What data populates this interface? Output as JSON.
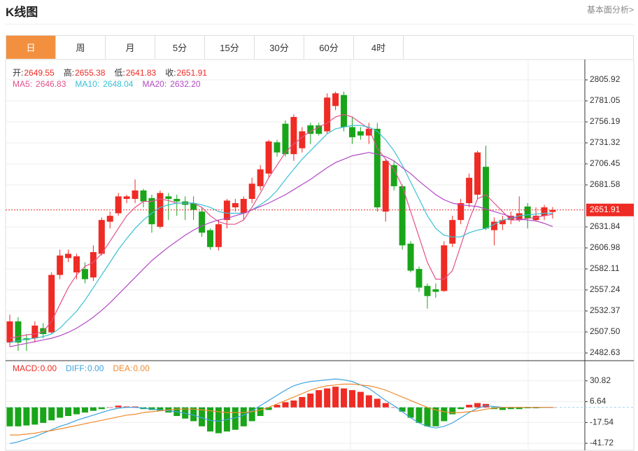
{
  "header": {
    "title": "K线图",
    "link": "基本面分析>"
  },
  "tabs": [
    "日",
    "周",
    "月",
    "5分",
    "15分",
    "30分",
    "60分",
    "4时"
  ],
  "chart_data": [
    {
      "type": "candlestick",
      "open": [
        2495,
        2520,
        2500,
        2500,
        2512,
        2507,
        2575,
        2595,
        2578,
        2582,
        2572,
        2600,
        2638,
        2648,
        2665,
        2665,
        2675,
        2666,
        2632,
        2668,
        2665,
        2662,
        2660,
        2650,
        2628,
        2608,
        2640,
        2655,
        2648,
        2665,
        2680,
        2695,
        2732,
        2754,
        2718,
        2725,
        2752,
        2752,
        2745,
        2775,
        2788,
        2750,
        2745,
        2740,
        2748,
        2650,
        2705,
        2680,
        2612,
        2582,
        2562,
        2558,
        2556,
        2612,
        2640,
        2660,
        2670,
        2703,
        2628,
        2635,
        2640,
        2640,
        2656,
        2640,
        2645,
        2649.55
      ],
      "high": [
        2528,
        2525,
        2505,
        2520,
        2518,
        2578,
        2605,
        2605,
        2600,
        2590,
        2610,
        2643,
        2650,
        2672,
        2670,
        2688,
        2677,
        2670,
        2675,
        2672,
        2670,
        2668,
        2668,
        2655,
        2630,
        2640,
        2665,
        2665,
        2668,
        2690,
        2705,
        2735,
        2735,
        2758,
        2765,
        2750,
        2755,
        2755,
        2790,
        2792,
        2792,
        2762,
        2750,
        2755,
        2755,
        2712,
        2710,
        2682,
        2615,
        2585,
        2565,
        2565,
        2615,
        2645,
        2665,
        2695,
        2722,
        2728,
        2643,
        2645,
        2650,
        2668,
        2660,
        2655,
        2658,
        2655.38
      ],
      "low": [
        2490,
        2485,
        2485,
        2495,
        2500,
        2505,
        2570,
        2590,
        2570,
        2565,
        2568,
        2598,
        2630,
        2645,
        2660,
        2660,
        2655,
        2625,
        2630,
        2640,
        2645,
        2640,
        2640,
        2620,
        2605,
        2604,
        2630,
        2650,
        2640,
        2660,
        2675,
        2690,
        2715,
        2715,
        2710,
        2720,
        2730,
        2740,
        2742,
        2770,
        2745,
        2730,
        2735,
        2730,
        2650,
        2638,
        2675,
        2605,
        2578,
        2555,
        2535,
        2548,
        2555,
        2608,
        2635,
        2655,
        2665,
        2628,
        2610,
        2628,
        2635,
        2638,
        2630,
        2638,
        2640,
        2641.83
      ],
      "close": [
        2520,
        2495,
        2498,
        2515,
        2505,
        2575,
        2598,
        2600,
        2597,
        2570,
        2602,
        2640,
        2645,
        2668,
        2668,
        2675,
        2662,
        2635,
        2672,
        2665,
        2662,
        2658,
        2652,
        2625,
        2608,
        2635,
        2663,
        2660,
        2665,
        2683,
        2700,
        2733,
        2720,
        2718,
        2762,
        2745,
        2742,
        2742,
        2785,
        2790,
        2750,
        2738,
        2740,
        2748,
        2655,
        2710,
        2680,
        2610,
        2580,
        2560,
        2550,
        2555,
        2610,
        2640,
        2660,
        2690,
        2720,
        2630,
        2638,
        2640,
        2645,
        2648,
        2642,
        2645,
        2655,
        2651.91
      ],
      "up_color": "#ee2b24",
      "down_color": "#19a519",
      "ohlc_labels": [
        "开:",
        "高:",
        "低:",
        "收:"
      ],
      "ylim": [
        2473.5,
        2830
      ],
      "yticks": [
        2482.63,
        {
          "value": 2507.5,
          "label": "2507.50"
        },
        2532.37,
        2557.24,
        2582.11,
        2606.98,
        2631.84,
        2681.58,
        2706.45,
        2731.32,
        2756.19,
        2781.05,
        2805.92
      ],
      "grid": true,
      "series": [
        {
          "name": "MA5:",
          "color": "#e2508a",
          "values": [
            2500,
            2502,
            2504,
            2505,
            2508,
            2520,
            2540,
            2560,
            2575,
            2585,
            2590,
            2600,
            2615,
            2630,
            2645,
            2655,
            2662,
            2662,
            2665,
            2663,
            2660,
            2660,
            2660,
            2655,
            2645,
            2638,
            2635,
            2635,
            2640,
            2655,
            2672,
            2690,
            2705,
            2720,
            2730,
            2738,
            2745,
            2750,
            2755,
            2762,
            2765,
            2762,
            2755,
            2748,
            2725,
            2712,
            2700,
            2680,
            2650,
            2620,
            2590,
            2570,
            2570,
            2580,
            2610,
            2640,
            2665,
            2670,
            2660,
            2650,
            2640,
            2640,
            2642,
            2643,
            2645,
            2646.83
          ]
        },
        {
          "name": "MA10:",
          "color": "#38c0d6",
          "values": [
            2495,
            2497,
            2499,
            2500,
            2502,
            2505,
            2512,
            2522,
            2532,
            2545,
            2560,
            2575,
            2590,
            2605,
            2618,
            2630,
            2640,
            2648,
            2655,
            2658,
            2660,
            2660,
            2660,
            2658,
            2655,
            2650,
            2648,
            2648,
            2648,
            2652,
            2658,
            2665,
            2675,
            2688,
            2700,
            2712,
            2722,
            2732,
            2742,
            2748,
            2750,
            2752,
            2752,
            2750,
            2745,
            2735,
            2722,
            2705,
            2685,
            2665,
            2645,
            2630,
            2622,
            2620,
            2620,
            2625,
            2628,
            2630,
            2635,
            2640,
            2642,
            2645,
            2646,
            2647,
            2648,
            2648.04
          ]
        },
        {
          "name": "MA20:",
          "color": "#b348c6",
          "current_label": "2632.20",
          "values": [
            2490,
            2492,
            2494,
            2496,
            2498,
            2500,
            2503,
            2507,
            2512,
            2518,
            2525,
            2533,
            2542,
            2552,
            2562,
            2572,
            2582,
            2592,
            2600,
            2608,
            2615,
            2622,
            2628,
            2633,
            2637,
            2640,
            2642,
            2645,
            2648,
            2652,
            2656,
            2660,
            2665,
            2670,
            2676,
            2682,
            2688,
            2695,
            2702,
            2708,
            2712,
            2716,
            2718,
            2720,
            2718,
            2715,
            2710,
            2702,
            2695,
            2686,
            2678,
            2670,
            2664,
            2660,
            2658,
            2657,
            2656,
            2653,
            2650,
            2647,
            2644,
            2641,
            2640,
            2639,
            2636,
            2632.2
          ]
        }
      ]
    },
    {
      "type": "macd",
      "name": "MACD:",
      "current_label": "0.00",
      "up_color": "#ee2b24",
      "down_color": "#19a519",
      "values": [
        -22,
        -22,
        -21,
        -20,
        -18,
        -15,
        -12,
        -10,
        -8,
        -6,
        -4,
        -2,
        0,
        2,
        1,
        1,
        -2,
        -3,
        -4,
        -6,
        -10,
        -13,
        -16,
        -22,
        -28,
        -30,
        -28,
        -26,
        -22,
        -16,
        -10,
        -3,
        3,
        6,
        8,
        12,
        16,
        20,
        22,
        24,
        22,
        20,
        18,
        14,
        10,
        5,
        0,
        -5,
        -12,
        -18,
        -22,
        -22,
        -16,
        -8,
        -2,
        3,
        5,
        4,
        -2,
        -3,
        -2,
        -2,
        -1,
        -1,
        0,
        0
      ],
      "ylim": [
        -49.8,
        54.2
      ],
      "yticks": [
        -41.72,
        -17.54,
        6.64,
        30.82
      ],
      "series": [
        {
          "name": "DIFF:",
          "color": "#3aa2e0",
          "current_label": "0.00",
          "values": [
            -42,
            -40,
            -37,
            -34,
            -30,
            -26,
            -22,
            -19,
            -15,
            -12,
            -9,
            -6,
            -3,
            -1,
            0,
            0,
            -1,
            -2,
            -3,
            -4,
            -5,
            -7,
            -9,
            -12,
            -15,
            -16,
            -14,
            -12,
            -9,
            -4,
            2,
            8,
            14,
            20,
            25,
            28,
            30,
            31,
            32,
            33,
            32,
            30,
            26,
            22,
            15,
            8,
            2,
            -5,
            -12,
            -18,
            -22,
            -24,
            -22,
            -18,
            -12,
            -6,
            -1,
            2,
            1,
            0,
            0,
            0,
            0,
            0,
            0,
            0
          ]
        },
        {
          "name": "DEA:",
          "color": "#f08a2c",
          "current_label": "0.00",
          "values": [
            -32,
            -32,
            -31,
            -30,
            -28,
            -27,
            -25,
            -23,
            -21,
            -19,
            -17,
            -15,
            -13,
            -11,
            -9,
            -8,
            -6,
            -5,
            -4,
            -3,
            -2,
            -2,
            -2,
            -3,
            -4,
            -5,
            -6,
            -6,
            -6,
            -5,
            -3,
            0,
            4,
            8,
            12,
            16,
            20,
            23,
            25,
            26,
            27,
            27,
            26,
            25,
            23,
            20,
            16,
            12,
            8,
            4,
            0,
            -3,
            -5,
            -6,
            -6,
            -5,
            -4,
            -2,
            -1,
            0,
            0,
            0,
            0,
            0,
            0,
            0
          ]
        }
      ]
    }
  ]
}
